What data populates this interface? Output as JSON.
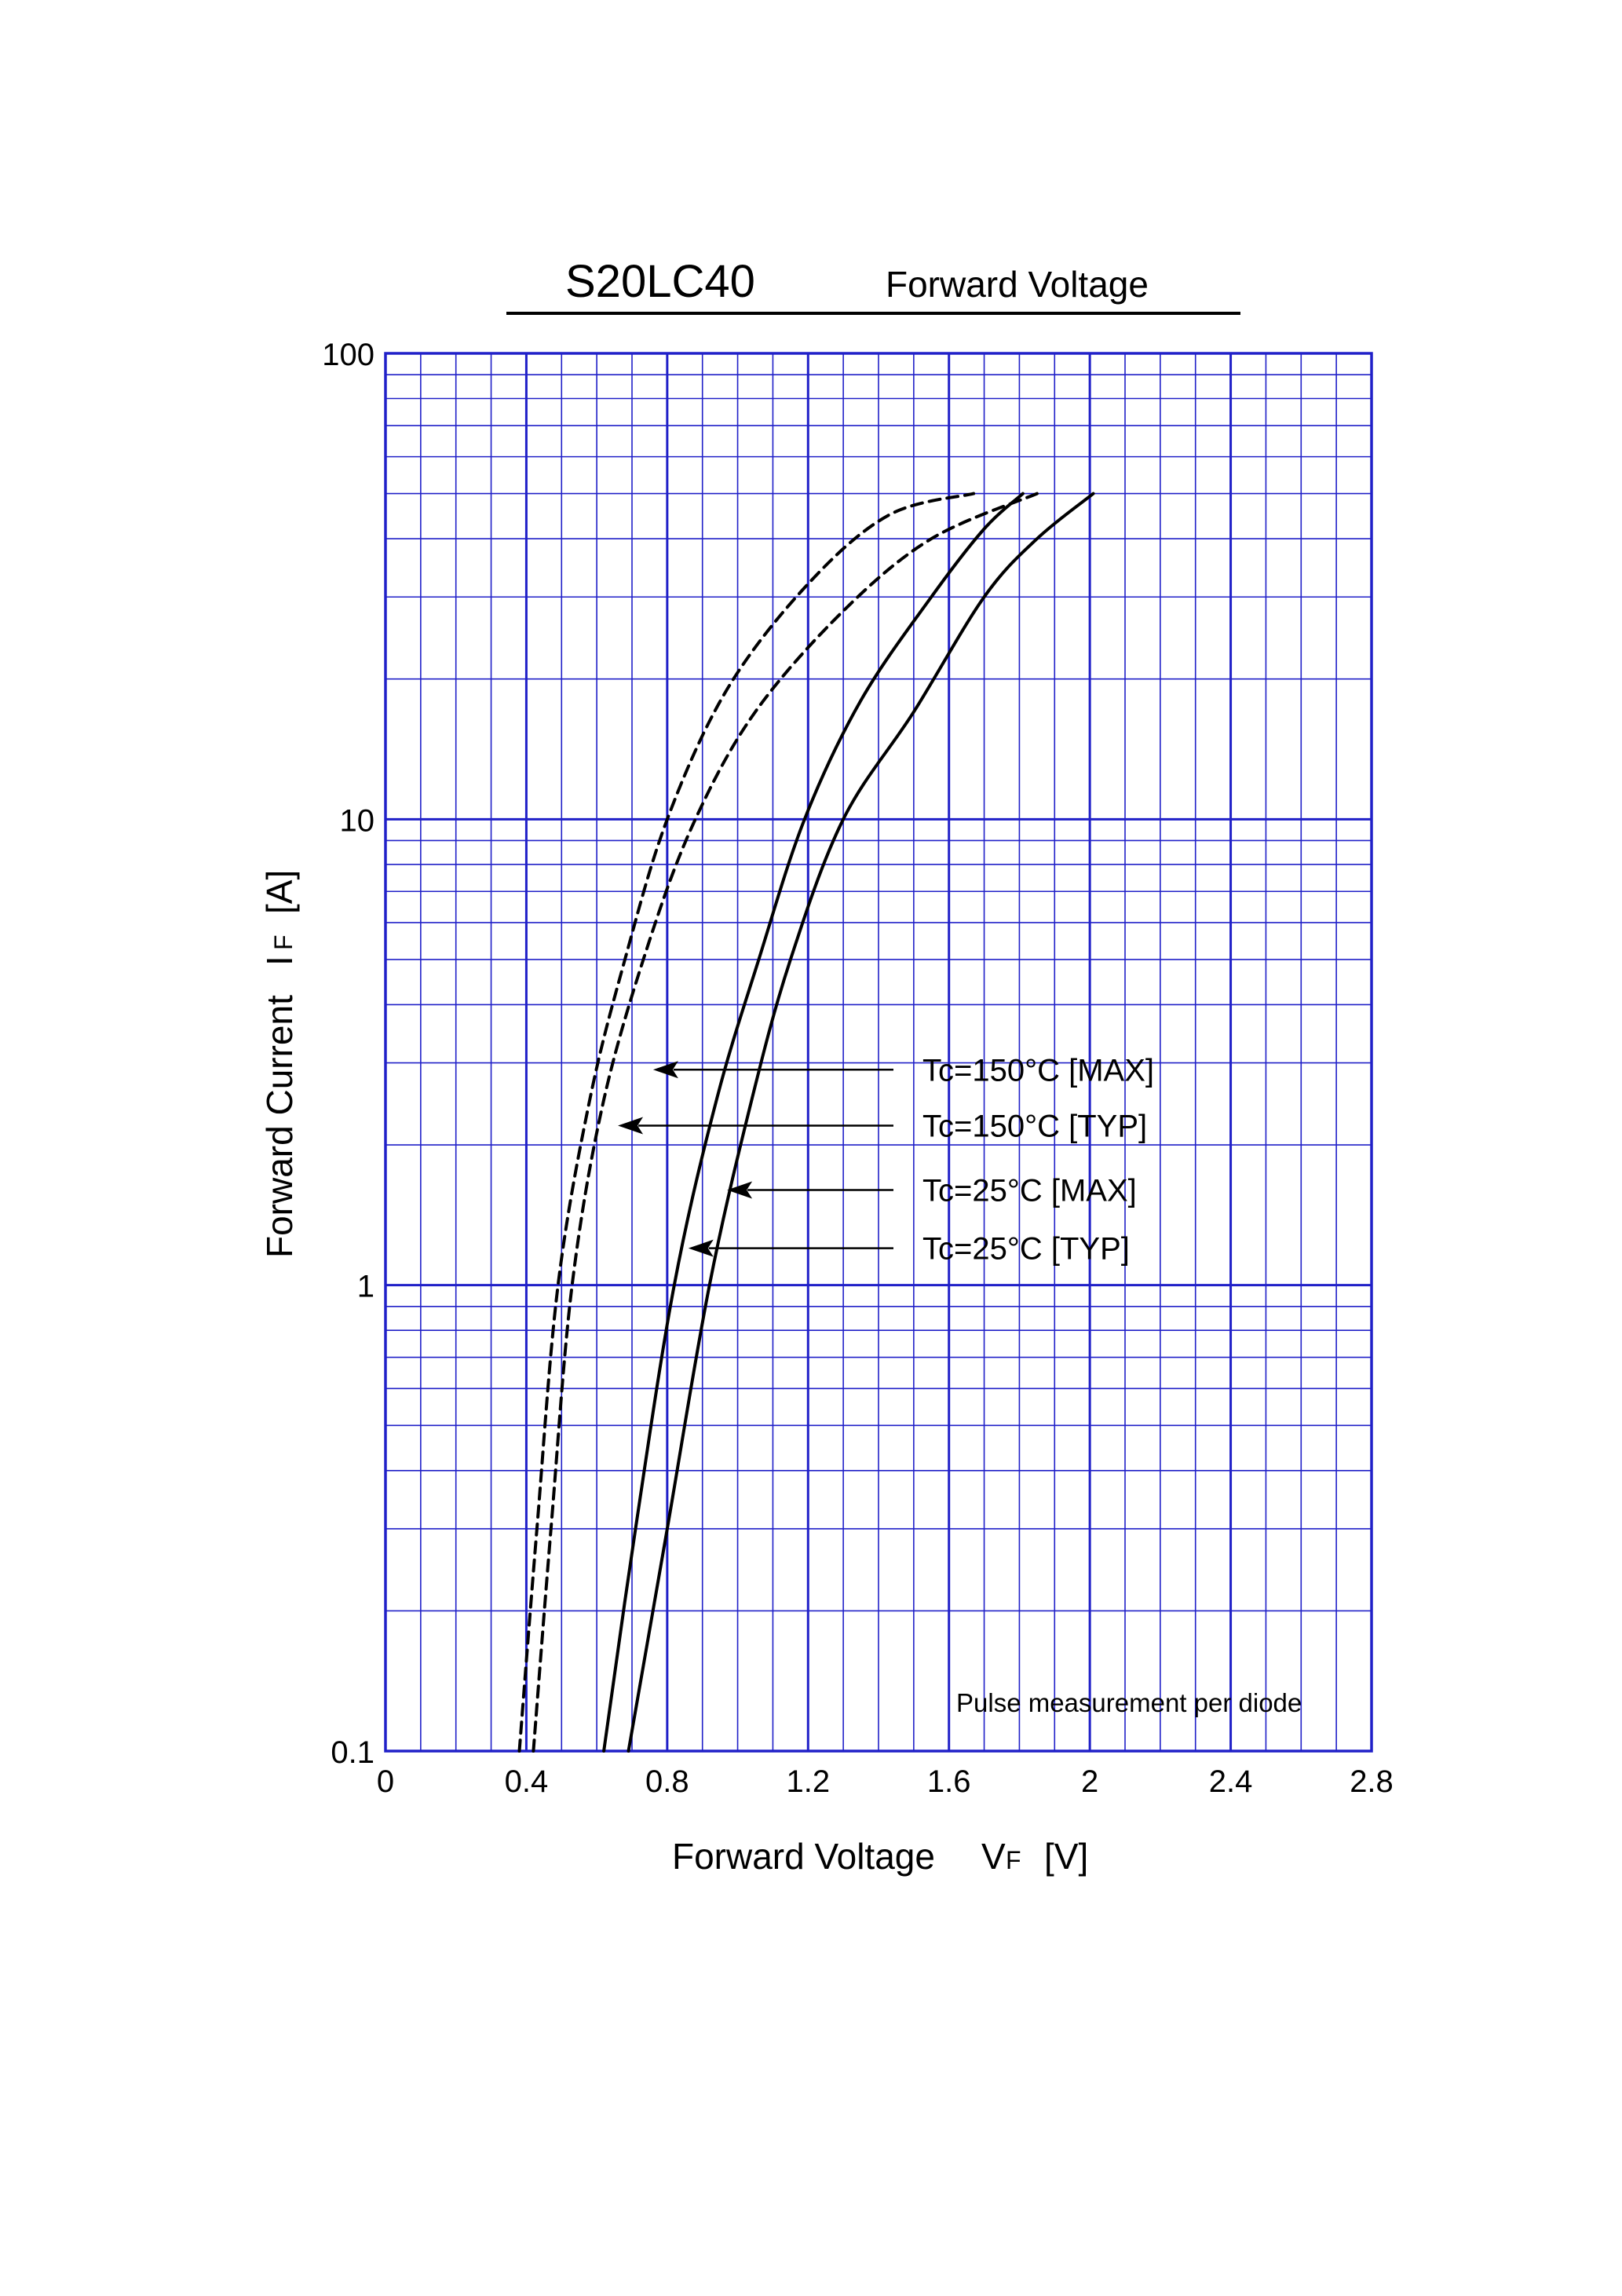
{
  "header": {
    "part_number": "S20LC40",
    "title": "Forward Voltage"
  },
  "note": "Pulse measurement per diode",
  "colors": {
    "grid": "#2020c8",
    "curve": "#000000",
    "background": "#ffffff"
  },
  "chart_data": {
    "type": "line",
    "title": "Forward Voltage",
    "xlabel": "Forward Voltage",
    "xlabel_symbol": "V",
    "xlabel_sub": "F",
    "xlabel_unit": "[V]",
    "ylabel": "Forward Current",
    "ylabel_symbol": "I",
    "ylabel_sub": "F",
    "ylabel_unit": "[A]",
    "xlim": [
      0,
      2.8
    ],
    "ylim": [
      0.1,
      100
    ],
    "yscale": "log",
    "grid": true,
    "x_ticks": [
      0,
      0.4,
      0.8,
      1.2,
      1.6,
      2,
      2.4,
      2.8
    ],
    "x_tick_labels": [
      "0",
      "0.4",
      "0.8",
      "1.2",
      "1.6",
      "2",
      "2.4",
      "2.8"
    ],
    "y_ticks": [
      0.1,
      1,
      10,
      100
    ],
    "y_tick_labels": [
      "0.1",
      "1",
      "10",
      "100"
    ],
    "series": [
      {
        "name": "Tc=150°C [MAX]",
        "style": "dashed",
        "arrow_to": [
          0.76,
          2.9
        ],
        "points": [
          [
            0.42,
            0.1
          ],
          [
            0.47,
            0.3
          ],
          [
            0.53,
            1.0
          ],
          [
            0.62,
            2.5
          ],
          [
            0.75,
            5.5
          ],
          [
            0.88,
            10
          ],
          [
            1.05,
            17
          ],
          [
            1.3,
            28
          ],
          [
            1.55,
            40
          ],
          [
            1.85,
            50
          ]
        ]
      },
      {
        "name": "Tc=150°C [TYP]",
        "style": "dashed",
        "arrow_to": [
          0.66,
          2.2
        ],
        "points": [
          [
            0.38,
            0.1
          ],
          [
            0.43,
            0.3
          ],
          [
            0.49,
            1.0
          ],
          [
            0.58,
            2.5
          ],
          [
            0.68,
            5.0
          ],
          [
            0.8,
            10
          ],
          [
            0.97,
            19
          ],
          [
            1.2,
            32
          ],
          [
            1.43,
            45
          ],
          [
            1.67,
            50
          ]
        ]
      },
      {
        "name": "Tc=25°C [MAX]",
        "style": "solid",
        "arrow_to": [
          0.97,
          1.6
        ],
        "points": [
          [
            0.69,
            0.1
          ],
          [
            0.8,
            0.3
          ],
          [
            0.92,
            1.0
          ],
          [
            1.04,
            2.5
          ],
          [
            1.15,
            5.0
          ],
          [
            1.3,
            10
          ],
          [
            1.5,
            17
          ],
          [
            1.7,
            30
          ],
          [
            1.85,
            40
          ],
          [
            2.01,
            50
          ]
        ]
      },
      {
        "name": "Tc=25°C [TYP]",
        "style": "solid",
        "arrow_to": [
          0.86,
          1.2
        ],
        "points": [
          [
            0.62,
            0.1
          ],
          [
            0.71,
            0.3
          ],
          [
            0.82,
            1.0
          ],
          [
            0.94,
            2.5
          ],
          [
            1.06,
            5.0
          ],
          [
            1.19,
            10
          ],
          [
            1.35,
            18
          ],
          [
            1.55,
            30
          ],
          [
            1.7,
            42
          ],
          [
            1.81,
            50
          ]
        ]
      }
    ]
  }
}
